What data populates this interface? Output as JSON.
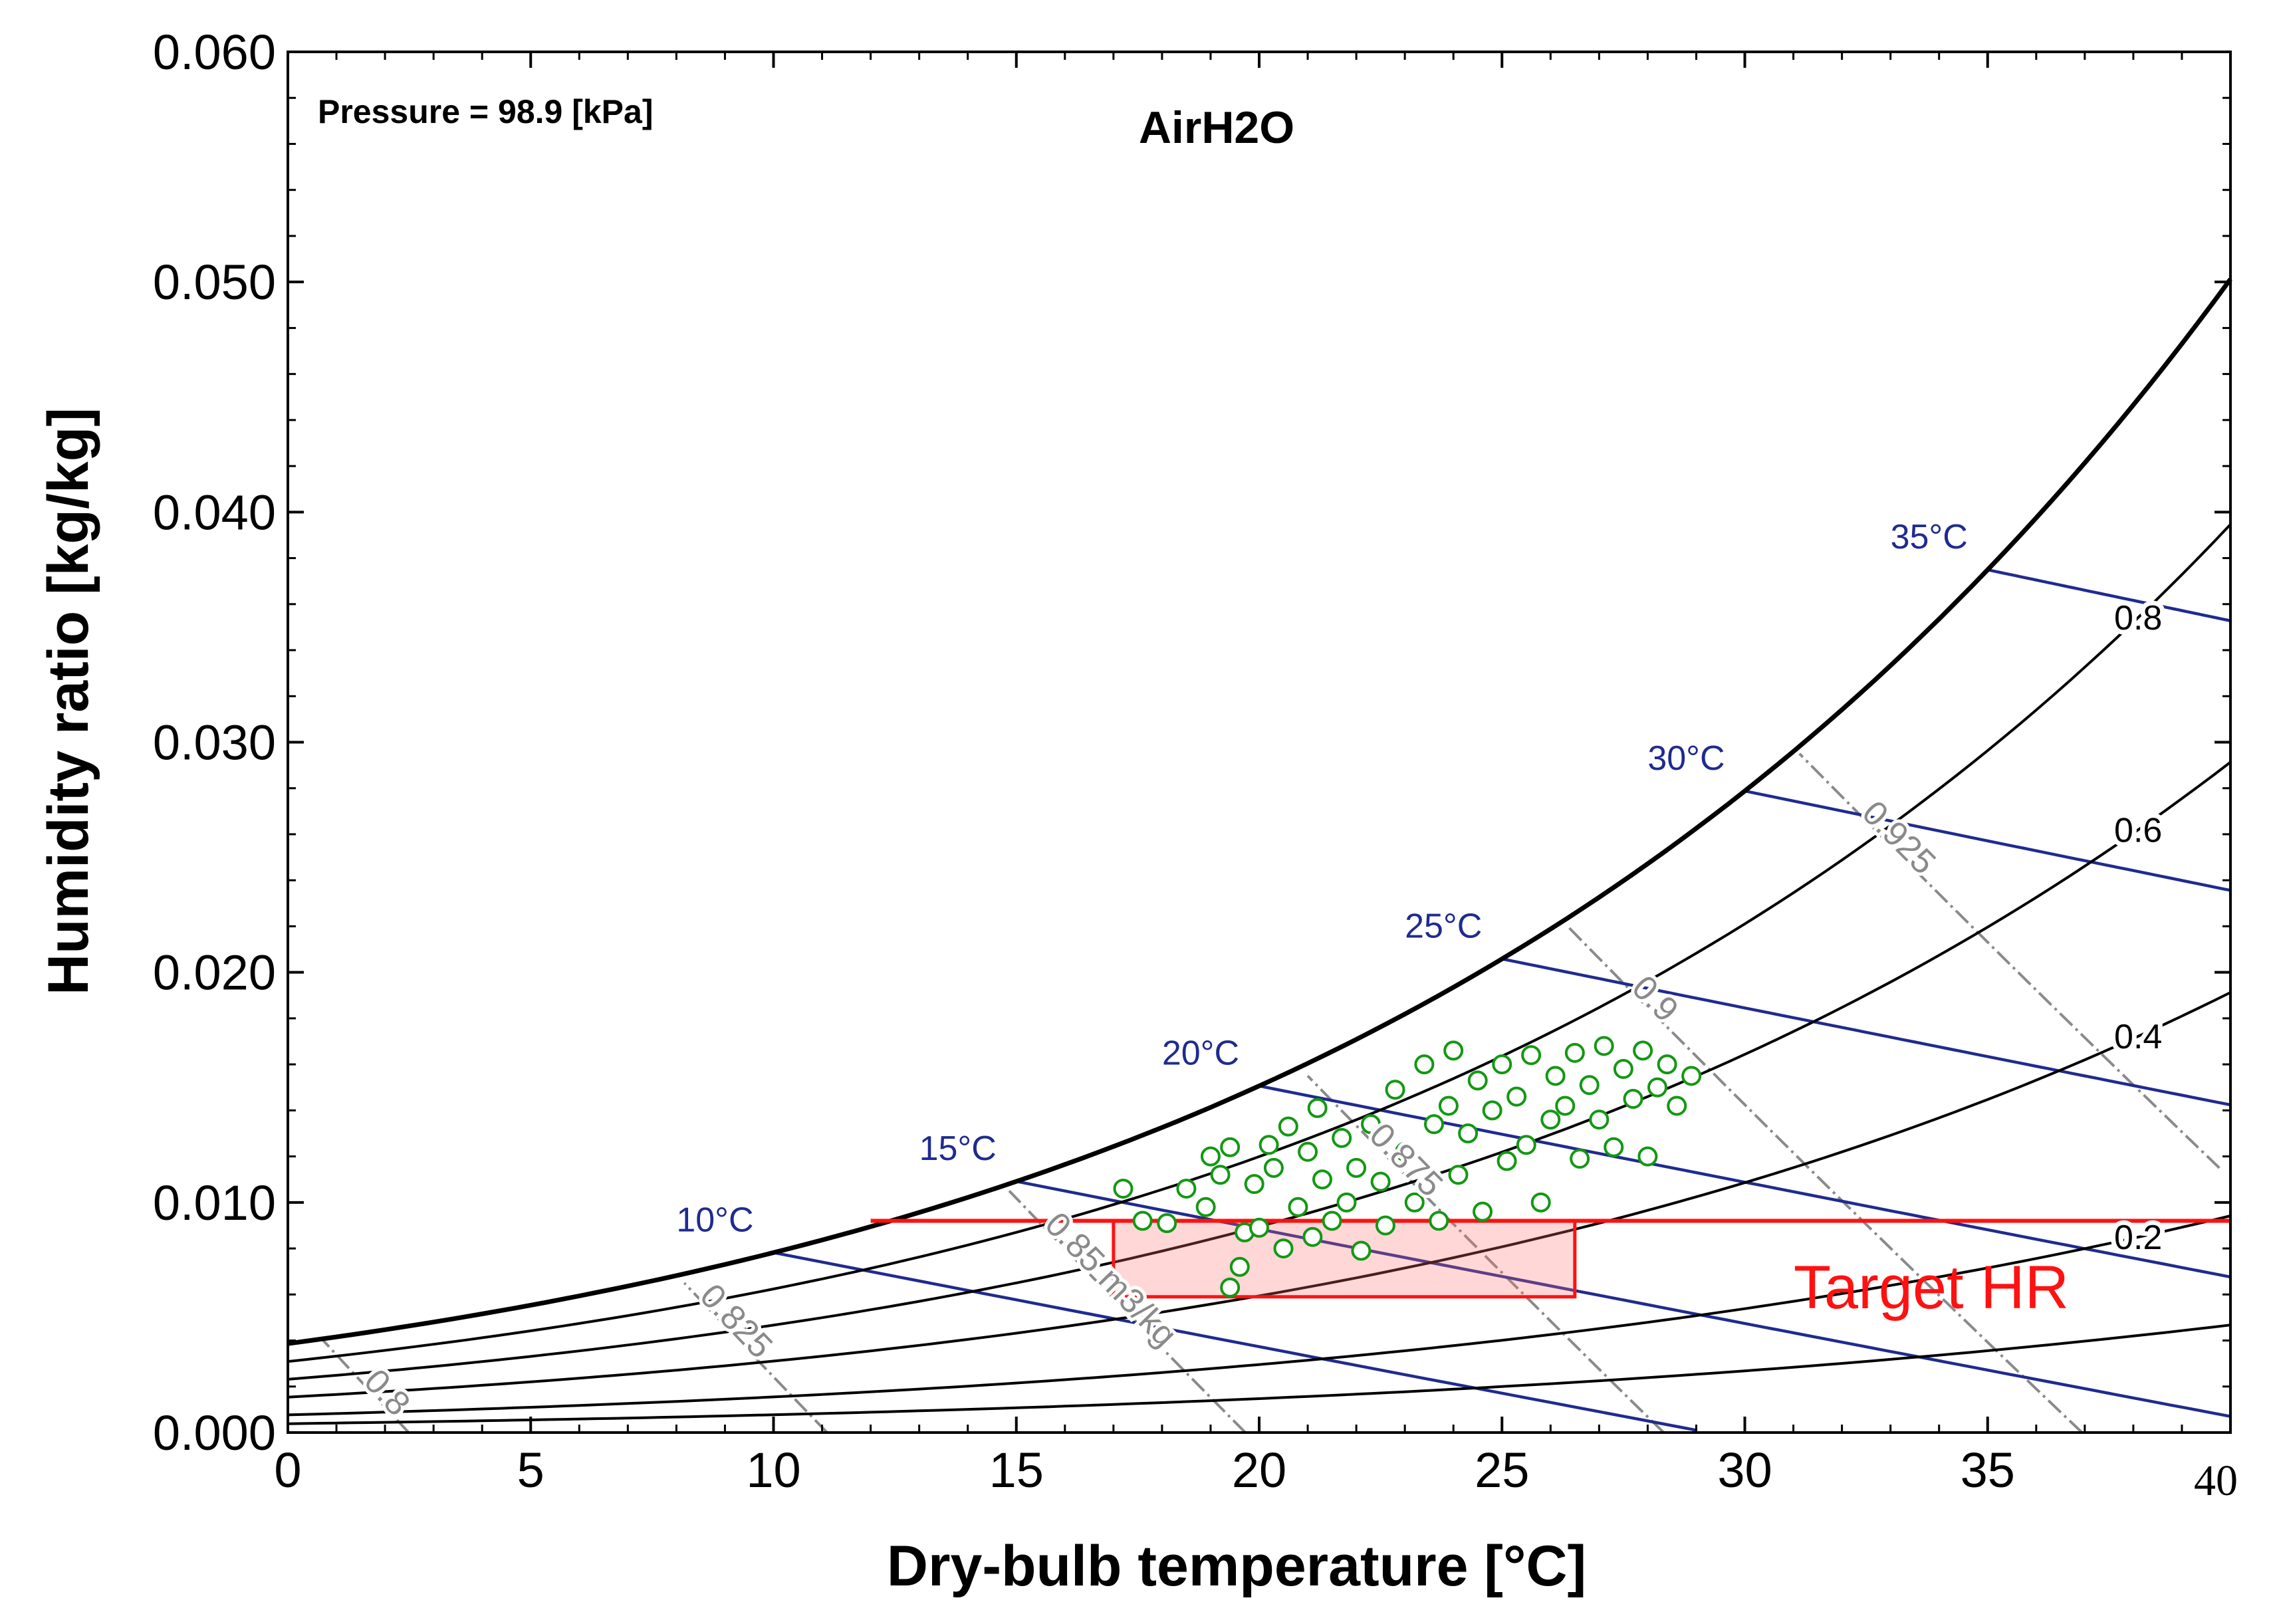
{
  "chart_data": {
    "type": "scatter",
    "title": "AirH2O",
    "subtitle": "Pressure = 98.9 [kPa]",
    "xlabel": "Dry-bulb temperature [°C]",
    "ylabel": "Humidity ratio [kg/kg]",
    "xlim": [
      0,
      40
    ],
    "ylim": [
      0,
      0.06
    ],
    "pressure_kpa": 98.9,
    "x_ticks": [
      0,
      5,
      10,
      15,
      20,
      25,
      30,
      35
    ],
    "x_tick_labels": [
      "0",
      "5",
      "10",
      "15",
      "20",
      "25",
      "30",
      "35"
    ],
    "y_ticks": [
      0,
      0.01,
      0.02,
      0.03,
      0.04,
      0.05,
      0.06
    ],
    "y_tick_labels": [
      "0.000",
      "0.010",
      "0.020",
      "0.030",
      "0.040",
      "0.050",
      "0.060"
    ],
    "stray_label": "40",
    "relative_humidity_lines": [
      {
        "rh": 1.0,
        "label": null
      },
      {
        "rh": 0.8,
        "label": "0.8"
      },
      {
        "rh": 0.6,
        "label": "0.6"
      },
      {
        "rh": 0.4,
        "label": "0.4"
      },
      {
        "rh": 0.2,
        "label": "0.2"
      },
      {
        "rh": 0.1,
        "label": null
      }
    ],
    "wet_bulb_lines": [
      {
        "twb": 10,
        "label": "10°C"
      },
      {
        "twb": 15,
        "label": "15°C"
      },
      {
        "twb": 20,
        "label": "20°C"
      },
      {
        "twb": 25,
        "label": "25°C"
      },
      {
        "twb": 30,
        "label": "30°C"
      },
      {
        "twb": 35,
        "label": "35°C"
      }
    ],
    "specific_volume_lines": [
      {
        "v": 0.8,
        "label": "0.8"
      },
      {
        "v": 0.825,
        "label": "0.825"
      },
      {
        "v": 0.85,
        "label": "0.85 m3/kg"
      },
      {
        "v": 0.875,
        "label": "0.875"
      },
      {
        "v": 0.9,
        "label": "0.9"
      },
      {
        "v": 0.925,
        "label": "0.925"
      }
    ],
    "target": {
      "label": "Target HR",
      "hr_line": 0.0092,
      "hr_line_x_range": [
        12,
        40
      ],
      "box": {
        "t_min": 17,
        "t_max": 26.5,
        "w_min": 0.0059,
        "w_max": 0.0092
      }
    },
    "series": [
      {
        "name": "measured",
        "points": [
          [
            17.2,
            0.0106
          ],
          [
            17.6,
            0.0092
          ],
          [
            18.1,
            0.0091
          ],
          [
            18.5,
            0.0106
          ],
          [
            18.9,
            0.0098
          ],
          [
            19.0,
            0.012
          ],
          [
            19.2,
            0.0112
          ],
          [
            19.4,
            0.0124
          ],
          [
            19.4,
            0.0063
          ],
          [
            19.6,
            0.0072
          ],
          [
            19.7,
            0.0087
          ],
          [
            19.9,
            0.0108
          ],
          [
            20.0,
            0.0089
          ],
          [
            20.2,
            0.0125
          ],
          [
            20.3,
            0.0115
          ],
          [
            20.5,
            0.008
          ],
          [
            20.6,
            0.0133
          ],
          [
            20.8,
            0.0098
          ],
          [
            21.0,
            0.0122
          ],
          [
            21.1,
            0.0085
          ],
          [
            21.2,
            0.0141
          ],
          [
            21.3,
            0.011
          ],
          [
            21.5,
            0.0092
          ],
          [
            21.7,
            0.0128
          ],
          [
            21.8,
            0.01
          ],
          [
            22.0,
            0.0115
          ],
          [
            22.1,
            0.0079
          ],
          [
            22.3,
            0.0134
          ],
          [
            22.5,
            0.0109
          ],
          [
            22.6,
            0.009
          ],
          [
            22.8,
            0.0149
          ],
          [
            23.0,
            0.0122
          ],
          [
            23.2,
            0.01
          ],
          [
            23.4,
            0.016
          ],
          [
            23.6,
            0.0134
          ],
          [
            23.7,
            0.0092
          ],
          [
            23.9,
            0.0142
          ],
          [
            24.0,
            0.0166
          ],
          [
            24.1,
            0.0112
          ],
          [
            24.3,
            0.013
          ],
          [
            24.5,
            0.0153
          ],
          [
            24.6,
            0.0096
          ],
          [
            24.8,
            0.014
          ],
          [
            25.0,
            0.016
          ],
          [
            25.1,
            0.0118
          ],
          [
            25.3,
            0.0146
          ],
          [
            25.5,
            0.0125
          ],
          [
            25.6,
            0.0164
          ],
          [
            25.8,
            0.01
          ],
          [
            26.0,
            0.0136
          ],
          [
            26.1,
            0.0155
          ],
          [
            26.3,
            0.0142
          ],
          [
            26.5,
            0.0165
          ],
          [
            26.6,
            0.0119
          ],
          [
            26.8,
            0.0151
          ],
          [
            27.0,
            0.0136
          ],
          [
            27.1,
            0.0168
          ],
          [
            27.3,
            0.0124
          ],
          [
            27.5,
            0.0158
          ],
          [
            27.7,
            0.0145
          ],
          [
            27.9,
            0.0166
          ],
          [
            28.0,
            0.012
          ],
          [
            28.2,
            0.015
          ],
          [
            28.4,
            0.016
          ],
          [
            28.6,
            0.0142
          ],
          [
            28.9,
            0.0155
          ]
        ]
      }
    ]
  }
}
